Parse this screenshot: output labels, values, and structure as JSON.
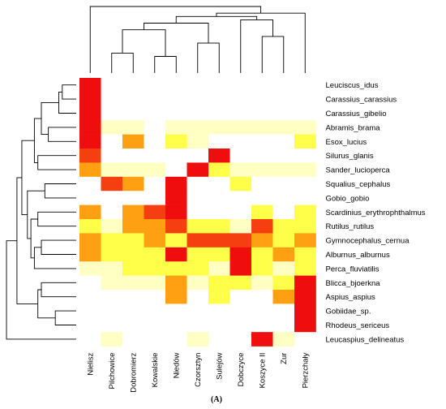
{
  "chart_data": {
    "type": "heatmap",
    "caption": "(A)",
    "columns": [
      "Nielisz",
      "Pilchowice",
      "Dobromierz",
      "Kowalskie",
      "Niedów",
      "Czorsztyn",
      "Sulejów",
      "Dobczyce",
      "Koszyce II",
      "Zur",
      "Pierzchały"
    ],
    "rows": [
      "Leuciscus_idus",
      "Carassius_carassius",
      "Carassius_gibelio",
      "Abramis_brama",
      "Esox_lucius",
      "Silurus_glanis",
      "Sander_lucioperca",
      "Squalius_cephalus",
      "Gobio_gobio",
      "Scardinius_erythrophthalmus",
      "Rutilus_rutilus",
      "Gymnocephalus_cernua",
      "Alburnus_alburnus",
      "Perca_fluviatilis",
      "Blicca_bjoerkna",
      "Aspius_aspius",
      "Gobiidae_sp.",
      "Rhodeus_sericeus",
      "Leucaspius_delineatus"
    ],
    "value_scale": "0 = white (absent), 1 = pale yellow, 2 = yellow, 3 = orange, 4 = red-orange, 5 = red (maximum)",
    "colors": [
      "#ffffff",
      "#ffffc4",
      "#ffff4a",
      "#ffa012",
      "#f53f10",
      "#f00d0d"
    ],
    "values": [
      [
        5,
        0,
        0,
        0,
        0,
        0,
        0,
        0,
        0,
        0,
        0
      ],
      [
        5,
        0,
        0,
        0,
        0,
        0,
        0,
        0,
        0,
        0,
        0
      ],
      [
        5,
        0,
        0,
        0,
        0,
        0,
        0,
        0,
        0,
        0,
        0
      ],
      [
        5,
        1,
        1,
        0,
        1,
        1,
        1,
        1,
        1,
        1,
        1
      ],
      [
        5,
        0,
        3,
        0,
        2,
        1,
        0,
        0,
        0,
        0,
        2
      ],
      [
        4,
        0,
        0,
        0,
        0,
        0,
        5,
        0,
        0,
        0,
        0
      ],
      [
        3,
        1,
        1,
        1,
        0,
        5,
        2,
        1,
        1,
        1,
        1
      ],
      [
        0,
        4,
        3,
        0,
        5,
        0,
        0,
        2,
        0,
        0,
        0
      ],
      [
        0,
        0,
        0,
        0,
        5,
        0,
        0,
        0,
        0,
        0,
        0
      ],
      [
        3,
        0,
        3,
        4,
        5,
        0,
        0,
        0,
        2,
        0,
        2
      ],
      [
        2,
        1,
        3,
        3,
        4,
        2,
        2,
        1,
        4,
        2,
        2
      ],
      [
        3,
        2,
        2,
        3,
        2,
        4,
        4,
        4,
        3,
        2,
        3
      ],
      [
        3,
        2,
        2,
        2,
        5,
        2,
        2,
        5,
        2,
        3,
        2
      ],
      [
        1,
        1,
        2,
        2,
        2,
        2,
        1,
        5,
        2,
        1,
        2
      ],
      [
        0,
        1,
        1,
        1,
        3,
        1,
        2,
        2,
        1,
        2,
        5
      ],
      [
        0,
        0,
        0,
        0,
        3,
        0,
        2,
        0,
        0,
        3,
        5
      ],
      [
        0,
        0,
        0,
        0,
        0,
        0,
        0,
        0,
        0,
        0,
        5
      ],
      [
        0,
        0,
        0,
        0,
        0,
        0,
        0,
        0,
        0,
        0,
        5
      ],
      [
        0,
        1,
        0,
        0,
        0,
        1,
        0,
        0,
        5,
        1,
        0
      ]
    ],
    "col_dendrogram": [
      [
        "Pilchowice",
        "Dobromierz",
        0.3
      ],
      [
        "Kowalskie",
        "Niedów",
        0.25
      ],
      [
        "Czorsztyn",
        "Sulejów",
        0.45
      ],
      [
        "Koszyce II",
        "Zur",
        0.55
      ],
      [
        "c1",
        "c2",
        0.65
      ],
      [
        "c5",
        "c3",
        0.75
      ],
      [
        "Dobczyce",
        "c4",
        0.8
      ],
      [
        "c6",
        "c7",
        0.85
      ],
      [
        "c8",
        "Pierzchały",
        0.9
      ],
      [
        "Nielisz",
        "c9",
        1.0
      ]
    ],
    "row_dendrogram": [
      [
        "Leuciscus_idus",
        "Carassius_carassius",
        0.2
      ],
      [
        "c1",
        "Carassius_gibelio",
        0.25
      ],
      [
        "Abramis_brama",
        "Esox_lucius",
        0.4
      ],
      [
        "c2",
        "c3",
        0.5
      ],
      [
        "Silurus_glanis",
        "Sander_lucioperca",
        0.55
      ],
      [
        "c4",
        "c5",
        0.6
      ],
      [
        "Squalius_cephalus",
        "Gobio_gobio",
        0.45
      ],
      [
        "Scardinius_erythrophthalmus",
        "Rutilus_rutilus",
        0.55
      ],
      [
        "Gymnocephalus_cernua",
        "Alburnus_alburnus",
        0.5
      ],
      [
        "c9",
        "Perca_fluviatilis",
        0.6
      ],
      [
        "c8",
        "c10",
        0.65
      ],
      [
        "c7",
        "c11",
        0.7
      ],
      [
        "c6",
        "c12",
        0.78
      ],
      [
        "Blicca_bjoerkna",
        "Aspius_aspius",
        0.5
      ],
      [
        "Gobiidae_sp.",
        "Rhodeus_sericeus",
        0.3
      ],
      [
        "c14",
        "c15",
        0.55
      ],
      [
        "c13",
        "c16",
        0.85
      ],
      [
        "c17",
        "Leucaspius_delineatus",
        1.0
      ]
    ]
  }
}
